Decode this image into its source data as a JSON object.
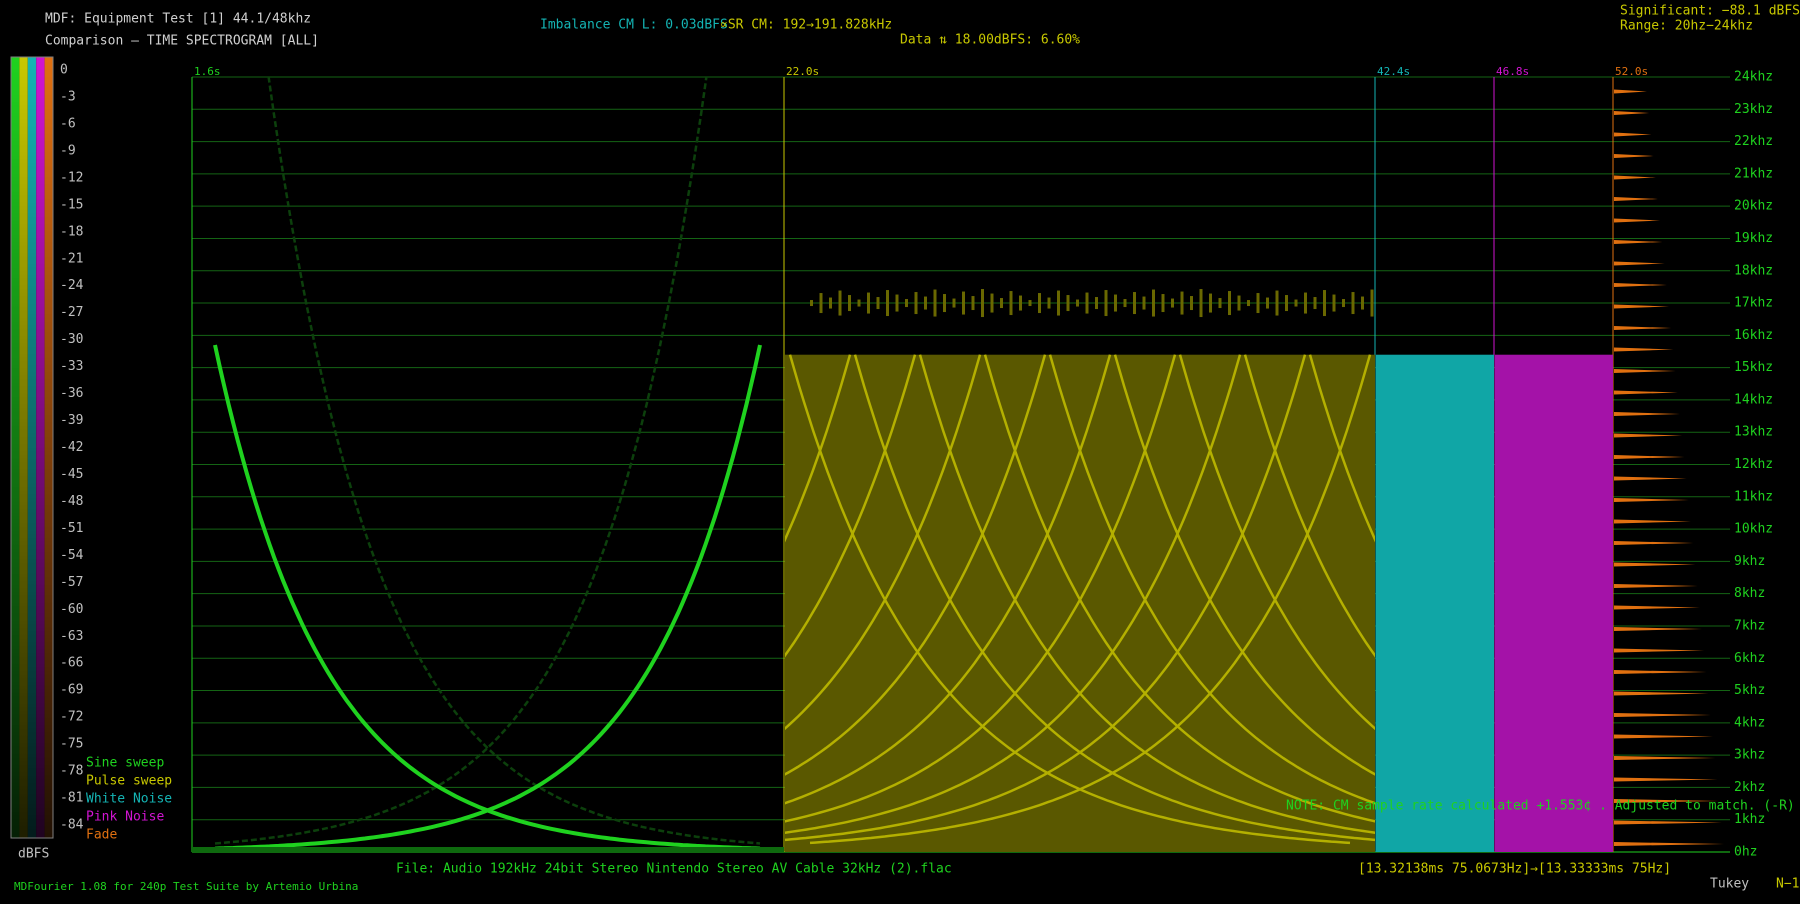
{
  "header": {
    "title": "MDF: Equipment Test [1] 44.1/48khz",
    "subtitle": "Comparison — TIME SPECTROGRAM [ALL]",
    "imbalance": "Imbalance CM L: 0.03dBFS",
    "sample_rate": "∝SR CM: 192→191.828kHz",
    "data_note": "Data ⇅ 18.00dBFS: 6.60%",
    "significant": "Significant: −88.1 dBFS",
    "range": "Range: 20hz−24khz"
  },
  "color_scale": {
    "labels": [
      "0",
      "-3",
      "-6",
      "-9",
      "-12",
      "-15",
      "-18",
      "-21",
      "-24",
      "-27",
      "-30",
      "-33",
      "-36",
      "-39",
      "-42",
      "-45",
      "-48",
      "-51",
      "-54",
      "-57",
      "-60",
      "-63",
      "-66",
      "-69",
      "-72",
      "-75",
      "-78",
      "-81",
      "-84"
    ],
    "unit": "dBFS"
  },
  "legend": [
    {
      "label": "Sine sweep",
      "color": "#1fd21f"
    },
    {
      "label": "Pulse sweep",
      "color": "#c8c800"
    },
    {
      "label": "White Noise",
      "color": "#14b4b4"
    },
    {
      "label": "Pink Noise",
      "color": "#d214d2"
    },
    {
      "label": "Fade",
      "color": "#e07010"
    }
  ],
  "markers": [
    {
      "label": "1.6s",
      "color": "#1fd21f"
    },
    {
      "label": "22.0s",
      "color": "#c8c800"
    },
    {
      "label": "42.4s",
      "color": "#14b4b4"
    },
    {
      "label": "46.8s",
      "color": "#d214d2"
    },
    {
      "label": "52.0s",
      "color": "#e07010"
    }
  ],
  "freq_axis": [
    "0hz",
    "1khz",
    "2khz",
    "3khz",
    "4khz",
    "5khz",
    "6khz",
    "7khz",
    "8khz",
    "9khz",
    "10khz",
    "11khz",
    "12khz",
    "13khz",
    "14khz",
    "15khz",
    "16khz",
    "17khz",
    "18khz",
    "19khz",
    "20khz",
    "21khz",
    "22khz",
    "23khz",
    "24khz"
  ],
  "note": "NOTE: CM sample rate calculated +1.553¢ . Adjusted to match. (-R)",
  "footer": {
    "file": "File: Audio  192kHz 24bit Stereo Nintendo Stereo AV Cable 32kHz (2).flac",
    "timing": "[13.32138ms 75.0673Hz]→[13.33333ms 75Hz]",
    "credits": "MDFourier 1.08 for 240p Test Suite by Artemio Urbina",
    "window": "Tukey",
    "channels": "N−1"
  }
}
